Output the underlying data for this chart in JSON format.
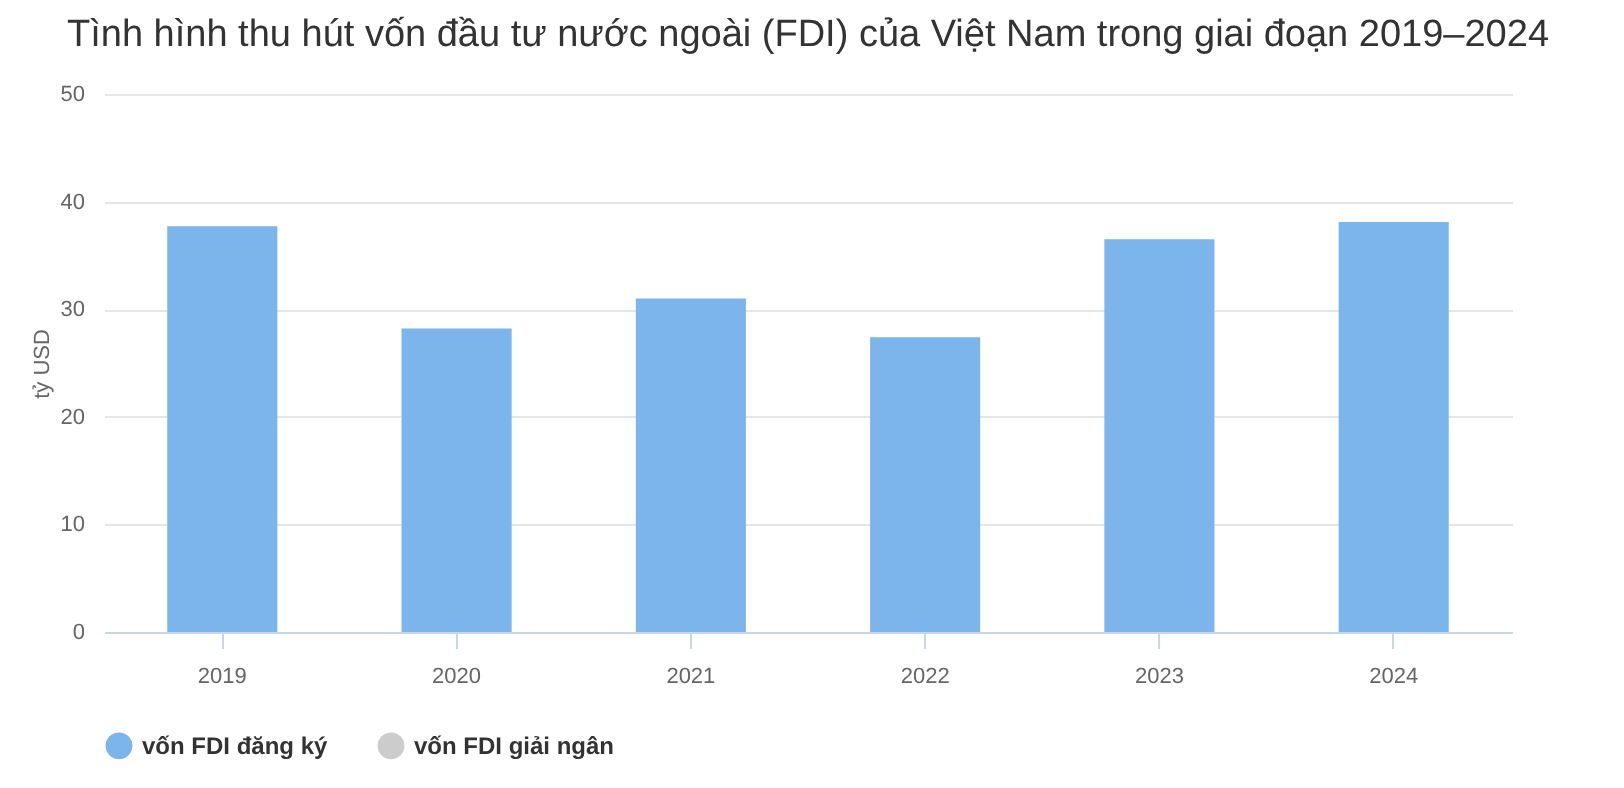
{
  "chart_data": {
    "type": "bar",
    "title": "Tình hình thu hút vốn đầu tư nước ngoài (FDI) của Việt Nam trong giai đoạn 2019–2024",
    "ylabel": "tỷ USD",
    "categories": [
      "2019",
      "2020",
      "2021",
      "2022",
      "2023",
      "2024"
    ],
    "series": [
      {
        "name": "vốn FDI đăng ký",
        "color": "#7cb5ec",
        "values": [
          37.7,
          28.2,
          31.0,
          27.4,
          36.5,
          38.1
        ]
      },
      {
        "name": "vốn FDI giải ngân",
        "color": "#cccccc",
        "values": [
          null,
          null,
          null,
          null,
          null,
          null
        ]
      }
    ],
    "ylim": [
      0,
      50
    ],
    "yticks": [
      0,
      10,
      20,
      30,
      40,
      50
    ],
    "grid": "y",
    "legend": "bottom"
  }
}
